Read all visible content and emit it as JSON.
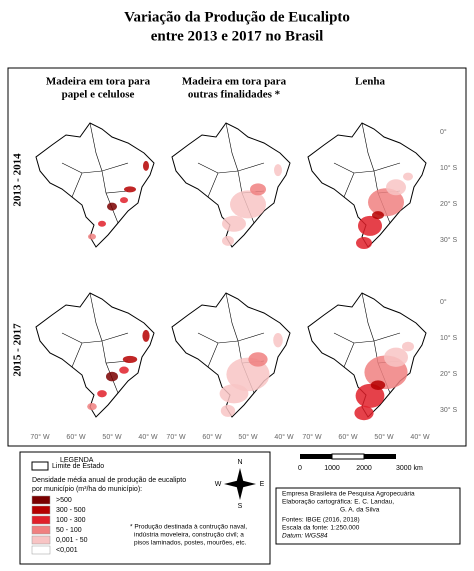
{
  "title": [
    "Variação da Produção de Eucalipto",
    "entre 2013 e 2017 no Brasil"
  ],
  "columns": [
    [
      "Madeira em tora para",
      "papel e celulose"
    ],
    [
      "Madeira em tora para",
      "outras finalidades *"
    ],
    [
      "Lenha"
    ]
  ],
  "rows": [
    "2013 - 2014",
    "2015 - 2017"
  ],
  "lon_labels": [
    "70° W",
    "60° W",
    "50° W",
    "40° W"
  ],
  "lat_labels": [
    "0°",
    "10° S",
    "20° S",
    "30° S"
  ],
  "legend": {
    "title": "LEGENDA",
    "boundary": "Limite de Estado",
    "density_title": [
      "Densidade média anual de produção de eucalipto",
      "por município (m³/ha do município):"
    ],
    "classes": [
      {
        "label": ">500",
        "color": "#7a0000"
      },
      {
        "label": "300 - 500",
        "color": "#b50000"
      },
      {
        "label": "100 - 300",
        "color": "#e0202a"
      },
      {
        "label": "50 - 100",
        "color": "#f08080"
      },
      {
        "label": "0,001 - 50",
        "color": "#f8c4c4"
      },
      {
        "label": "<0,001",
        "color": "#ffffff"
      }
    ],
    "footnote": [
      "* Produção destinada à contrução naval,",
      "indústria moveleira, construção civil; a",
      "pisos laminados, postes, mourões, etc."
    ]
  },
  "compass": [
    "N",
    "S",
    "E",
    "W"
  ],
  "scale": [
    "0",
    "1000",
    "2000",
    "3000 km"
  ],
  "credits": [
    "Empresa Brasileira de Pesquisa Agropecuária",
    "Elaboração cartográfica: E. C. Landau,",
    "G. A. da Silva",
    "Fontes: IBGE (2016, 2018)",
    "Escala da fonte: 1:250.000",
    "Datum: WGS84"
  ]
}
